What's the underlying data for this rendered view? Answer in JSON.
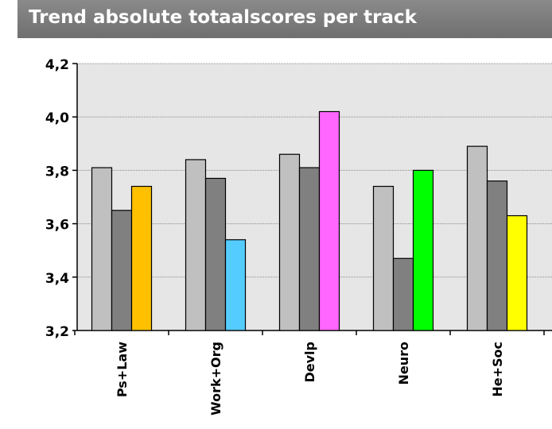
{
  "chart_data": {
    "type": "bar",
    "title": "Trend absolute totaalscores per track",
    "categories": [
      "Ps+Law",
      "Work+Org",
      "Devlp",
      "Neuro",
      "He+Soc"
    ],
    "ylim": [
      3.2,
      4.2
    ],
    "yticks": [
      "3,2",
      "3,4",
      "3,6",
      "3,8",
      "4,0",
      "4,2"
    ],
    "grid": true,
    "series": [
      {
        "values": [
          3.81,
          3.84,
          3.86,
          3.74,
          3.89
        ],
        "colors": [
          "#c0c0c0",
          "#c0c0c0",
          "#c0c0c0",
          "#c0c0c0",
          "#c0c0c0"
        ]
      },
      {
        "values": [
          3.65,
          3.77,
          3.81,
          3.47,
          3.76
        ],
        "colors": [
          "#808080",
          "#808080",
          "#808080",
          "#808080",
          "#808080"
        ]
      },
      {
        "values": [
          3.74,
          3.54,
          4.02,
          3.8,
          3.63
        ],
        "colors": [
          "#ffc000",
          "#55ccff",
          "#ff66ff",
          "#00ff00",
          "#ffff00"
        ]
      }
    ]
  }
}
